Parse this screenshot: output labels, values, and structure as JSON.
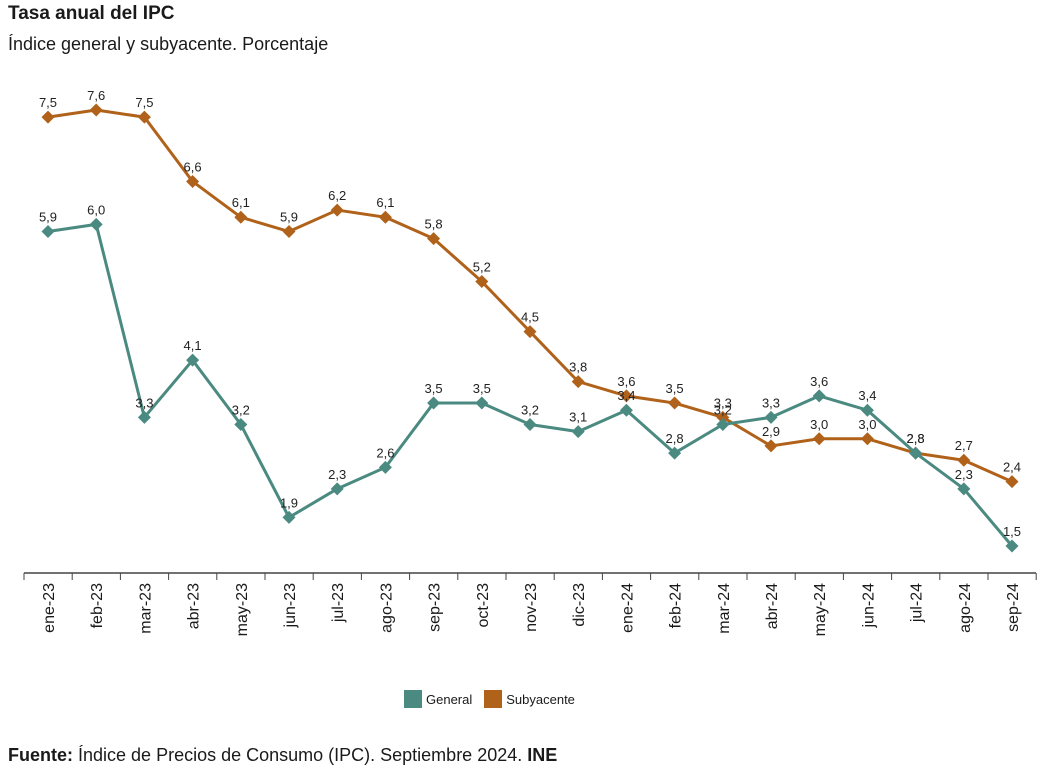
{
  "header": {
    "title": "Tasa anual del IPC",
    "subtitle": "Índice general y subyacente. Porcentaje"
  },
  "source": {
    "label": "Fuente:",
    "text": "Índice de Precios de Consumo (IPC). Septiembre 2024.",
    "org": "INE"
  },
  "colors": {
    "general": "#4a8a80",
    "subyacente": "#b0621a",
    "axis": "#444444"
  },
  "chart_data": {
    "type": "line",
    "title": "Tasa anual del IPC",
    "subtitle": "Índice general y subyacente. Porcentaje",
    "xlabel": "",
    "ylabel": "",
    "categories": [
      "ene-23",
      "feb-23",
      "mar-23",
      "abr-23",
      "may-23",
      "jun-23",
      "jul-23",
      "ago-23",
      "sep-23",
      "oct-23",
      "nov-23",
      "dic-23",
      "ene-24",
      "feb-24",
      "mar-24",
      "abr-24",
      "may-24",
      "jun-24",
      "jul-24",
      "ago-24",
      "sep-24"
    ],
    "series": [
      {
        "name": "General",
        "values": [
          5.9,
          6.0,
          3.3,
          4.1,
          3.2,
          1.9,
          2.3,
          2.6,
          3.5,
          3.5,
          3.2,
          3.1,
          3.4,
          2.8,
          3.2,
          3.3,
          3.6,
          3.4,
          2.8,
          2.3,
          1.5
        ]
      },
      {
        "name": "Subyacente",
        "values": [
          7.5,
          7.6,
          7.5,
          6.6,
          6.1,
          5.9,
          6.2,
          6.1,
          5.8,
          5.2,
          4.5,
          3.8,
          3.6,
          3.5,
          3.3,
          2.9,
          3.0,
          3.0,
          2.8,
          2.7,
          2.4
        ]
      }
    ],
    "data_labels": {
      "General": [
        "5,9",
        "6,0",
        "3,3",
        "4,1",
        "3,2",
        "1,9",
        "2,3",
        "2,6",
        "3,5",
        "3,5",
        "3,2",
        "3,1",
        "3,4",
        "2,8",
        "3,2",
        "3,3",
        "3,6",
        "3,4",
        "2,8",
        "2,3",
        "1,5"
      ],
      "Subyacente": [
        "7,5",
        "7,6",
        "7,5",
        "6,6",
        "6,1",
        "5,9",
        "6,2",
        "6,1",
        "5,8",
        "5,2",
        "4,5",
        "3,8",
        "3,6",
        "3,5",
        "3,3",
        "2,9",
        "3,0",
        "3,0",
        "2,8",
        "2,7",
        "2,4"
      ]
    },
    "legend": [
      "General",
      "Subyacente"
    ],
    "legend_position": "bottom-center",
    "grid": false
  }
}
